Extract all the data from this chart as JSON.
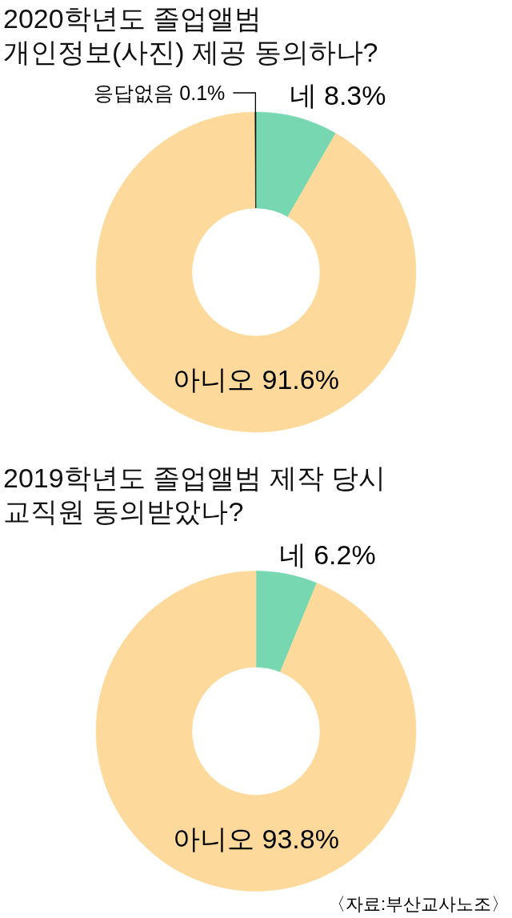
{
  "chart_data": [
    {
      "type": "donut",
      "title": "2020학년도 졸업앨범\n개인정보(사진) 제공 동의하나?",
      "categories": [
        "네",
        "아니오",
        "응답없음"
      ],
      "values": [
        8.3,
        91.6,
        0.1
      ],
      "colors": [
        "#76d7b1",
        "#fdda9c",
        "#111111"
      ],
      "value_labels": [
        "8.3%",
        "91.6%",
        "0.1%"
      ]
    },
    {
      "type": "donut",
      "title": "2019학년도 졸업앨범 제작 당시\n교직원 동의받았나?",
      "categories": [
        "네",
        "아니오"
      ],
      "values": [
        6.2,
        93.8
      ],
      "colors": [
        "#76d7b1",
        "#fdda9c"
      ],
      "value_labels": [
        "6.2%",
        "93.8%"
      ],
      "annotations": [
        "〈자료:부산교사노조〉"
      ]
    }
  ]
}
